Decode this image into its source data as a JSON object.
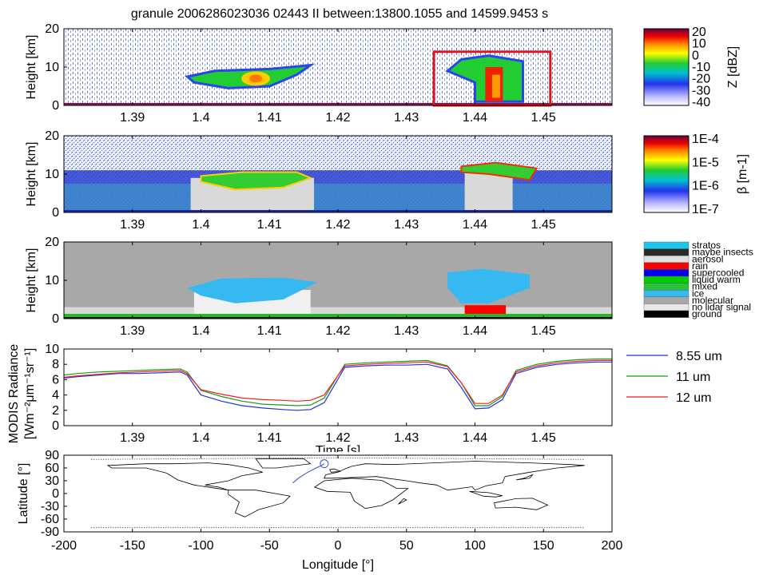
{
  "title": "granule 2006286023036 02443 II between:13800.1055 and 14599.9453 s",
  "colors": {
    "frame": "#000000",
    "highlight_box": "#e0151b",
    "sat_track": "#3b4fd6"
  },
  "chart_data": [
    {
      "id": "radar",
      "type": "heatmap",
      "ylabel": "Height [km]",
      "xlim": [
        1.38,
        1.46
      ],
      "ylim": [
        0,
        20
      ],
      "xticks": [
        "1.39",
        "1.4",
        "1.41",
        "1.42",
        "1.43",
        "1.44",
        "1.45"
      ],
      "yticks": [
        "0",
        "10",
        "20"
      ],
      "colorbar": {
        "label": "Z [dBZ]",
        "ticks": [
          "20",
          "10",
          "0",
          "-10",
          "-20",
          "-30",
          "-40"
        ]
      },
      "highlight_box": {
        "x": [
          1.434,
          1.451
        ],
        "y": [
          0,
          14
        ]
      }
    },
    {
      "id": "lidar",
      "type": "heatmap",
      "ylabel": "Height [km]",
      "xlim": [
        1.38,
        1.46
      ],
      "ylim": [
        0,
        20
      ],
      "xticks": [
        "1.39",
        "1.4",
        "1.41",
        "1.42",
        "1.43",
        "1.44",
        "1.45"
      ],
      "yticks": [
        "0",
        "10",
        "20"
      ],
      "colorbar": {
        "label": "β [m-1]",
        "ticks": [
          "1E-4",
          "1E-5",
          "1E-6",
          "1E-7"
        ]
      }
    },
    {
      "id": "mask",
      "type": "heatmap",
      "ylabel": "Height [km]",
      "xlim": [
        1.38,
        1.46
      ],
      "ylim": [
        0,
        20
      ],
      "xticks": [
        "1.39",
        "1.4",
        "1.41",
        "1.42",
        "1.43",
        "1.44",
        "1.45"
      ],
      "yticks": [
        "0",
        "10",
        "20"
      ],
      "legend": [
        {
          "label": "stratos",
          "color": "#19c8ee"
        },
        {
          "label": "maybe insects",
          "color": "#2a2a2a"
        },
        {
          "label": "aerosol",
          "color": "#e0e0e0"
        },
        {
          "label": "rain",
          "color": "#ff0000"
        },
        {
          "label": "supercooled",
          "color": "#0000ee"
        },
        {
          "label": "liquid warm",
          "color": "#00cc00"
        },
        {
          "label": "mixed",
          "color": "#2ac23b"
        },
        {
          "label": "ice",
          "color": "#36b9f1"
        },
        {
          "label": "molecular",
          "color": "#a8a8a8"
        },
        {
          "label": "no lidar signal",
          "color": "#e8e8e8"
        },
        {
          "label": "ground",
          "color": "#000000"
        }
      ]
    },
    {
      "id": "modis",
      "type": "line",
      "ylabel": [
        "MODIS Radiance",
        "[Wm⁻²μm⁻¹sr⁻¹]"
      ],
      "xlabel": "Time [s]",
      "xlim": [
        1.38,
        1.46
      ],
      "ylim": [
        0,
        10
      ],
      "xticks": [
        "1.39",
        "1.4",
        "1.41",
        "1.42",
        "1.43",
        "1.44",
        "1.45"
      ],
      "yticks": [
        "0",
        "2",
        "4",
        "6",
        "8",
        "10"
      ],
      "x": [
        1.38,
        1.382,
        1.385,
        1.388,
        1.391,
        1.394,
        1.397,
        1.398,
        1.4,
        1.403,
        1.406,
        1.409,
        1.412,
        1.414,
        1.416,
        1.418,
        1.421,
        1.424,
        1.427,
        1.43,
        1.433,
        1.436,
        1.438,
        1.44,
        1.442,
        1.444,
        1.446,
        1.449,
        1.452,
        1.455,
        1.458,
        1.46
      ],
      "series": [
        {
          "name": "8.55 um",
          "color": "#2233dd",
          "values": [
            6.2,
            6.4,
            6.6,
            6.8,
            6.8,
            6.9,
            7.0,
            6.6,
            4.0,
            3.2,
            2.6,
            2.3,
            2.1,
            2.0,
            2.1,
            3.0,
            7.6,
            7.8,
            7.9,
            7.9,
            8.0,
            7.4,
            5.0,
            2.2,
            2.3,
            3.4,
            6.8,
            7.6,
            8.0,
            8.2,
            8.3,
            8.3
          ]
        },
        {
          "name": "11 um",
          "color": "#1a9a1a",
          "values": [
            6.6,
            6.8,
            7.0,
            7.1,
            7.2,
            7.3,
            7.4,
            7.0,
            4.6,
            3.8,
            3.2,
            2.8,
            2.7,
            2.6,
            2.7,
            3.6,
            8.0,
            8.2,
            8.3,
            8.4,
            8.5,
            7.8,
            5.6,
            2.6,
            2.6,
            3.8,
            7.2,
            8.0,
            8.4,
            8.6,
            8.7,
            8.7
          ]
        },
        {
          "name": "12 um",
          "color": "#ee2222",
          "values": [
            6.3,
            6.5,
            6.7,
            6.9,
            7.0,
            7.1,
            7.2,
            6.8,
            4.7,
            4.1,
            3.6,
            3.4,
            3.3,
            3.2,
            3.3,
            4.0,
            7.8,
            8.0,
            8.1,
            8.2,
            8.3,
            7.7,
            5.6,
            2.9,
            2.9,
            4.0,
            7.0,
            7.8,
            8.2,
            8.4,
            8.5,
            8.5
          ]
        }
      ]
    },
    {
      "id": "map",
      "type": "scatter",
      "xlabel": "Longitude [°]",
      "ylabel": "Latitude [°]",
      "xlim": [
        -200,
        200
      ],
      "ylim": [
        -90,
        90
      ],
      "xticks": [
        "-200",
        "-150",
        "-100",
        "-50",
        "0",
        "50",
        "100",
        "150",
        "200"
      ],
      "yticks": [
        "90",
        "60",
        "30",
        "0",
        "-30",
        "-60",
        "-90"
      ],
      "track": {
        "lon": [
          -33,
          -28,
          -22,
          -16,
          -12,
          -10
        ],
        "lat": [
          25,
          38,
          50,
          60,
          66,
          70
        ]
      },
      "marker": {
        "lon": -10,
        "lat": 70
      }
    }
  ]
}
